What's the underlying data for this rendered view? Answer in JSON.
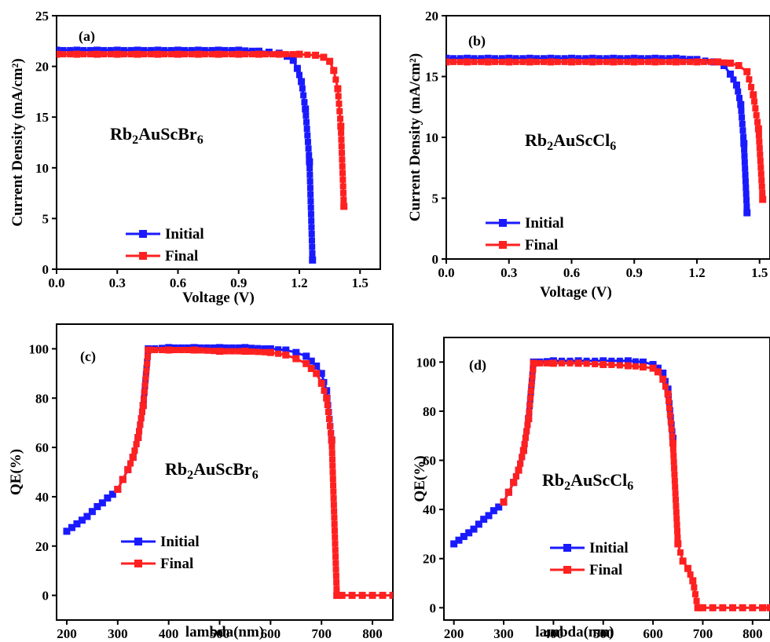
{
  "colors": {
    "initial": "#1a1aff",
    "final": "#ff2020",
    "axis": "#000000"
  },
  "chart_data": [
    {
      "panel": "(a)",
      "type": "line",
      "xlabel": "Voltage (V)",
      "ylabel": "Current Density (mA/cm²)",
      "xlim": [
        0.0,
        1.6
      ],
      "ylim": [
        0,
        25
      ],
      "xticks": [
        "0.0",
        "0.3",
        "0.6",
        "0.9",
        "1.2",
        "1.5"
      ],
      "yticks": [
        "0",
        "5",
        "10",
        "15",
        "20",
        "25"
      ],
      "annotation": {
        "prefix": "Rb",
        "sub1": "2",
        "mid": "AuScBr",
        "sub2": "6"
      },
      "legend": {
        "position": "bottom-left",
        "entries": [
          "Initial",
          "Final"
        ]
      },
      "series": [
        {
          "name": "Initial",
          "x": [
            0,
            0.1,
            0.2,
            0.3,
            0.4,
            0.5,
            0.6,
            0.7,
            0.8,
            0.9,
            1.0,
            1.05,
            1.1,
            1.14,
            1.17,
            1.19,
            1.21,
            1.23,
            1.25,
            1.265
          ],
          "y": [
            21.6,
            21.6,
            21.6,
            21.6,
            21.6,
            21.6,
            21.6,
            21.6,
            21.6,
            21.6,
            21.5,
            21.4,
            21.3,
            21.0,
            20.6,
            19.8,
            18.5,
            15.8,
            10.6,
            0.9
          ]
        },
        {
          "name": "Final",
          "x": [
            0,
            0.1,
            0.2,
            0.3,
            0.4,
            0.5,
            0.6,
            0.7,
            0.8,
            0.9,
            1.0,
            1.1,
            1.2,
            1.28,
            1.32,
            1.35,
            1.37,
            1.39,
            1.405,
            1.42
          ],
          "y": [
            21.2,
            21.2,
            21.2,
            21.2,
            21.2,
            21.2,
            21.2,
            21.2,
            21.2,
            21.2,
            21.2,
            21.2,
            21.2,
            21.1,
            20.9,
            20.5,
            19.6,
            17.8,
            14.1,
            6.2
          ]
        }
      ]
    },
    {
      "panel": "(b)",
      "type": "line",
      "xlabel": "Voltage (V)",
      "ylabel": "Current Density (mA/cm²)",
      "xlim": [
        0.0,
        1.55
      ],
      "ylim": [
        0,
        20
      ],
      "xticks": [
        "0.0",
        "0.3",
        "0.6",
        "0.9",
        "1.2",
        "1.5"
      ],
      "yticks": [
        "0",
        "5",
        "10",
        "15",
        "20"
      ],
      "annotation": {
        "prefix": "Rb",
        "sub1": "2",
        "mid": "AuScCl",
        "sub2": "6"
      },
      "legend": {
        "position": "bottom-left",
        "entries": [
          "Initial",
          "Final"
        ]
      },
      "series": [
        {
          "name": "Initial",
          "x": [
            0,
            0.1,
            0.2,
            0.3,
            0.4,
            0.5,
            0.6,
            0.7,
            0.8,
            0.9,
            1.0,
            1.1,
            1.2,
            1.28,
            1.33,
            1.36,
            1.39,
            1.41,
            1.425,
            1.44
          ],
          "y": [
            16.5,
            16.5,
            16.5,
            16.5,
            16.5,
            16.5,
            16.5,
            16.5,
            16.5,
            16.5,
            16.5,
            16.5,
            16.4,
            16.2,
            15.9,
            15.2,
            14.3,
            12.7,
            9.5,
            3.8
          ]
        },
        {
          "name": "Final",
          "x": [
            0,
            0.1,
            0.2,
            0.3,
            0.4,
            0.5,
            0.6,
            0.7,
            0.8,
            0.9,
            1.0,
            1.1,
            1.2,
            1.3,
            1.36,
            1.4,
            1.44,
            1.47,
            1.495,
            1.515
          ],
          "y": [
            16.2,
            16.2,
            16.2,
            16.2,
            16.2,
            16.2,
            16.2,
            16.2,
            16.2,
            16.2,
            16.2,
            16.2,
            16.2,
            16.2,
            16.1,
            15.9,
            15.4,
            13.5,
            10.7,
            4.9
          ]
        }
      ]
    },
    {
      "panel": "(c)",
      "type": "line",
      "xlabel": "lambda(nm)",
      "ylabel": "QE(%)",
      "xlim": [
        180,
        840
      ],
      "ylim": [
        -10,
        110
      ],
      "xticks": [
        "200",
        "300",
        "400",
        "500",
        "600",
        "700",
        "800"
      ],
      "yticks": [
        "0",
        "20",
        "40",
        "60",
        "80",
        "100"
      ],
      "annotation": {
        "prefix": "Rb",
        "sub1": "2",
        "mid": "AuScBr",
        "sub2": "6"
      },
      "legend": {
        "position": "bottom-left",
        "entries": [
          "Initial",
          "Final"
        ]
      },
      "series": [
        {
          "name": "Initial",
          "x": [
            200,
            210,
            220,
            230,
            240,
            250,
            260,
            270,
            280,
            290,
            300,
            310,
            320,
            330,
            340,
            350,
            360,
            400,
            450,
            500,
            550,
            600,
            630,
            650,
            670,
            680,
            690,
            700,
            710,
            720
          ],
          "y": [
            26,
            27.5,
            29,
            30.5,
            32,
            34,
            36,
            37.5,
            39.5,
            41,
            43,
            47,
            51,
            56,
            64,
            77,
            100,
            100.5,
            100.5,
            100.5,
            100.5,
            100,
            99.5,
            98.5,
            97,
            95,
            93,
            90,
            83,
            63
          ]
        },
        {
          "name": "Final",
          "x": [
            300,
            310,
            320,
            330,
            340,
            350,
            360,
            400,
            450,
            500,
            550,
            600,
            630,
            650,
            670,
            680,
            690,
            700,
            710,
            720,
            730,
            740,
            760,
            780,
            800,
            820,
            840
          ],
          "y": [
            43,
            47,
            51,
            56,
            64,
            77,
            99.5,
            99.5,
            99.5,
            99,
            99,
            98.5,
            97.5,
            96,
            94,
            92,
            90,
            86,
            80,
            63,
            0,
            0,
            0,
            0,
            0,
            0,
            0
          ]
        }
      ]
    },
    {
      "panel": "(d)",
      "type": "line",
      "xlabel": "lambda(nm)",
      "ylabel": "QE(%)",
      "xlim": [
        180,
        835
      ],
      "ylim": [
        -5,
        110
      ],
      "xticks": [
        "200",
        "300",
        "400",
        "500",
        "600",
        "700",
        "800"
      ],
      "yticks": [
        "0",
        "20",
        "40",
        "60",
        "80",
        "100"
      ],
      "annotation": {
        "prefix": "Rb",
        "sub1": "2",
        "mid": "AuScCl",
        "sub2": "6"
      },
      "legend": {
        "position": "bottom-left",
        "entries": [
          "Initial",
          "Final"
        ]
      },
      "series": [
        {
          "name": "Initial",
          "x": [
            200,
            210,
            220,
            230,
            240,
            250,
            260,
            270,
            280,
            290,
            300,
            310,
            320,
            330,
            340,
            350,
            360,
            400,
            450,
            500,
            550,
            580,
            600,
            610,
            620,
            630,
            640
          ],
          "y": [
            26,
            27.5,
            29,
            30.5,
            32,
            34,
            36,
            37.5,
            39.5,
            41,
            43,
            47,
            51,
            56,
            64,
            77,
            100,
            100.5,
            100.5,
            100.5,
            100.5,
            100,
            99,
            97.5,
            95.5,
            89,
            69
          ]
        },
        {
          "name": "Final",
          "x": [
            300,
            310,
            320,
            330,
            340,
            350,
            360,
            400,
            450,
            500,
            550,
            580,
            600,
            610,
            620,
            630,
            640,
            650,
            660,
            670,
            680,
            690,
            700,
            720,
            740,
            760,
            780,
            800,
            820,
            835
          ],
          "y": [
            43,
            47,
            51,
            56,
            64,
            77,
            99.5,
            99.5,
            99.5,
            99,
            98.5,
            98,
            97.5,
            96,
            93,
            87,
            67,
            26,
            19,
            16,
            11,
            0,
            0,
            0,
            0,
            0,
            0,
            0,
            0,
            0
          ]
        }
      ]
    }
  ]
}
